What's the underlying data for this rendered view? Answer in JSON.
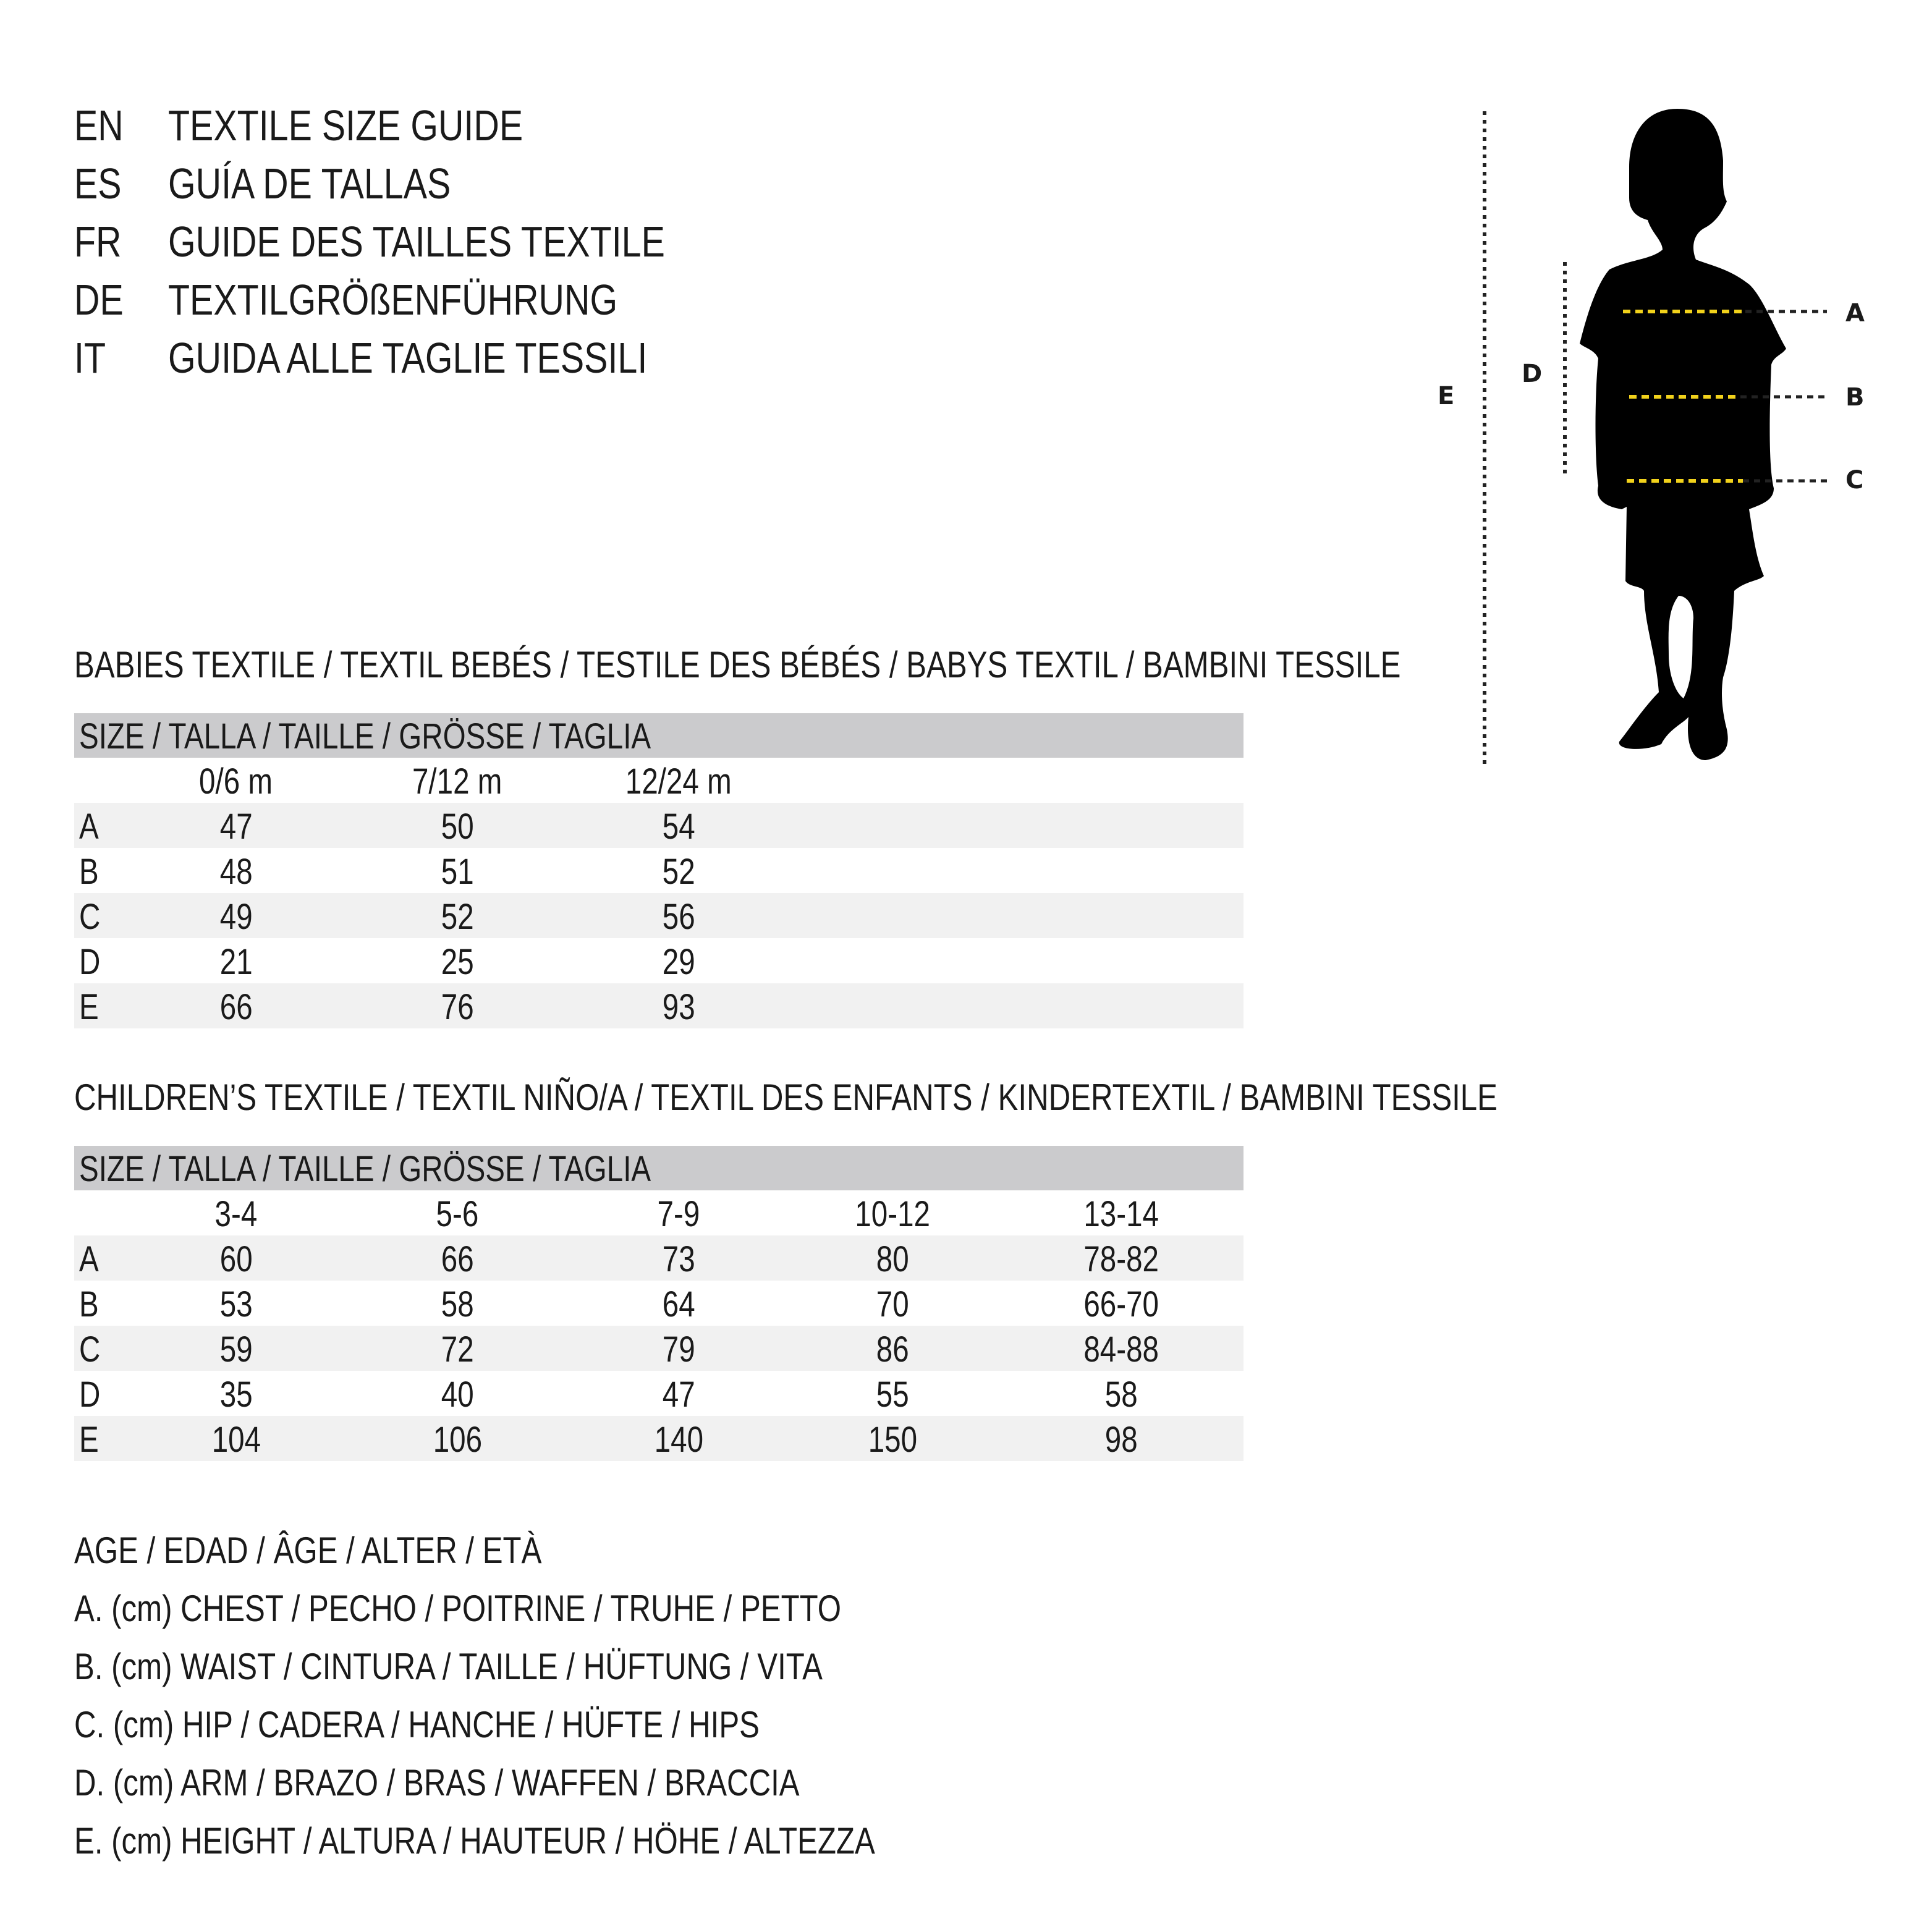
{
  "title_block": [
    {
      "code": "EN",
      "text": "TEXTILE SIZE GUIDE"
    },
    {
      "code": "ES",
      "text": "GUÍA DE TALLAS"
    },
    {
      "code": "FR",
      "text": "GUIDE DES TAILLES TEXTILE"
    },
    {
      "code": "DE",
      "text": "TEXTILGRÖßENFÜHRUNG"
    },
    {
      "code": "IT",
      "text": "GUIDA ALLE TAGLIE TESSILI"
    }
  ],
  "babies": {
    "heading": "BABIES TEXTILE / TEXTIL BEBÉS / TESTILE DES BÉBÉS / BABYS TEXTIL / BAMBINI TESSILE",
    "size_label": "SIZE / TALLA / TAILLE / GRÖSSE / TAGLIA",
    "columns": [
      "0/6 m",
      "7/12 m",
      "12/24 m"
    ],
    "rows": [
      {
        "label": "A",
        "values": [
          "47",
          "50",
          "54"
        ]
      },
      {
        "label": "B",
        "values": [
          "48",
          "51",
          "52"
        ]
      },
      {
        "label": "C",
        "values": [
          "49",
          "52",
          "56"
        ]
      },
      {
        "label": "D",
        "values": [
          "21",
          "25",
          "29"
        ]
      },
      {
        "label": "E",
        "values": [
          "66",
          "76",
          "93"
        ]
      }
    ]
  },
  "children": {
    "heading": "CHILDREN’S TEXTILE / TEXTIL NIÑO/A / TEXTIL DES ENFANTS / KINDERTEXTIL / BAMBINI TESSILE",
    "size_label": "SIZE / TALLA / TAILLE / GRÖSSE / TAGLIA",
    "columns": [
      "3-4",
      "5-6",
      "7-9",
      "10-12",
      "13-14"
    ],
    "rows": [
      {
        "label": "A",
        "values": [
          "60",
          "66",
          "73",
          "80",
          "78-82"
        ]
      },
      {
        "label": "B",
        "values": [
          "53",
          "58",
          "64",
          "70",
          "66-70"
        ]
      },
      {
        "label": "C",
        "values": [
          "59",
          "72",
          "79",
          "86",
          "84-88"
        ]
      },
      {
        "label": "D",
        "values": [
          "35",
          "40",
          "47",
          "55",
          "58"
        ]
      },
      {
        "label": "E",
        "values": [
          "104",
          "106",
          "140",
          "150",
          "98"
        ]
      }
    ]
  },
  "legend": [
    "AGE / EDAD / ÂGE / ALTER / ETÀ",
    "A. (cm) CHEST / PECHO / POITRINE / TRUHE / PETTO",
    "B. (cm) WAIST / CINTURA / TAILLE / HÜFTUNG / VITA",
    "C. (cm) HIP / CADERA / HANCHE / HÜFTE / HIPS",
    "D. (cm) ARM / BRAZO / BRAS / WAFFEN / BRACCIA",
    "E. (cm) HEIGHT / ALTURA / HAUTEUR / HÖHE / ALTEZZA"
  ],
  "figure": {
    "labels": {
      "A": "A",
      "B": "B",
      "C": "C",
      "D": "D",
      "E": "E"
    },
    "colors": {
      "silhouette": "#000000",
      "measure_line": "#f2d21b",
      "guide_line": "#222222",
      "table_band": "#cbcbcd",
      "row_alt": "#f1f1f1"
    }
  }
}
